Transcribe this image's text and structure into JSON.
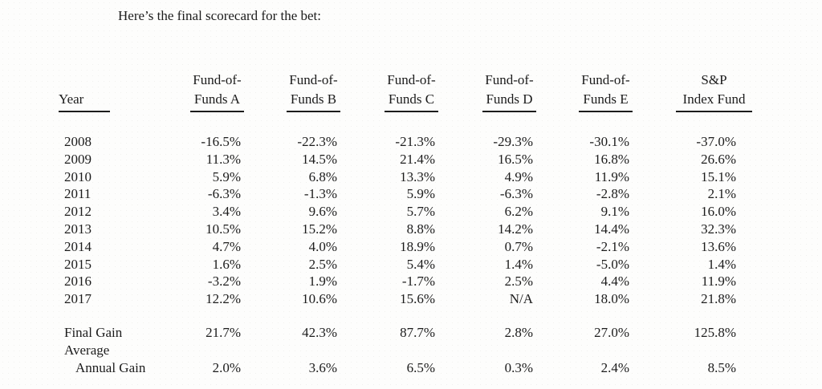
{
  "title": "Here’s the final scorecard for the bet:",
  "table": {
    "columns": [
      {
        "line1": "",
        "line2": "Year"
      },
      {
        "line1": "Fund-of-",
        "line2": "Funds A"
      },
      {
        "line1": "Fund-of-",
        "line2": "Funds B"
      },
      {
        "line1": "Fund-of-",
        "line2": "Funds C"
      },
      {
        "line1": "Fund-of-",
        "line2": "Funds D"
      },
      {
        "line1": "Fund-of-",
        "line2": "Funds E"
      },
      {
        "line1": "S&P",
        "line2": "Index Fund"
      }
    ],
    "rows": [
      {
        "label": "2008",
        "values": [
          "-16.5%",
          "-22.3%",
          "-21.3%",
          "-29.3%",
          "-30.1%",
          "-37.0%"
        ]
      },
      {
        "label": "2009",
        "values": [
          "11.3%",
          "14.5%",
          "21.4%",
          "16.5%",
          "16.8%",
          "26.6%"
        ]
      },
      {
        "label": "2010",
        "values": [
          "5.9%",
          "6.8%",
          "13.3%",
          "4.9%",
          "11.9%",
          "15.1%"
        ]
      },
      {
        "label": "2011",
        "values": [
          "-6.3%",
          "-1.3%",
          "5.9%",
          "-6.3%",
          "-2.8%",
          "2.1%"
        ]
      },
      {
        "label": "2012",
        "values": [
          "3.4%",
          "9.6%",
          "5.7%",
          "6.2%",
          "9.1%",
          "16.0%"
        ]
      },
      {
        "label": "2013",
        "values": [
          "10.5%",
          "15.2%",
          "8.8%",
          "14.2%",
          "14.4%",
          "32.3%"
        ]
      },
      {
        "label": "2014",
        "values": [
          "4.7%",
          "4.0%",
          "18.9%",
          "0.7%",
          "-2.1%",
          "13.6%"
        ]
      },
      {
        "label": "2015",
        "values": [
          "1.6%",
          "2.5%",
          "5.4%",
          "1.4%",
          "-5.0%",
          "1.4%"
        ]
      },
      {
        "label": "2016",
        "values": [
          "-3.2%",
          "1.9%",
          "-1.7%",
          "2.5%",
          "4.4%",
          "11.9%"
        ]
      },
      {
        "label": "2017",
        "values": [
          "12.2%",
          "10.6%",
          "15.6%",
          "N/A",
          "18.0%",
          "21.8%"
        ]
      }
    ],
    "summary": [
      {
        "label": "Final Gain",
        "indent": false,
        "values": [
          "21.7%",
          "42.3%",
          "87.7%",
          "2.8%",
          "27.0%",
          "125.8%"
        ]
      },
      {
        "label": "Average",
        "indent": false,
        "values": [
          "",
          "",
          "",
          "",
          "",
          ""
        ]
      },
      {
        "label": "Annual Gain",
        "indent": true,
        "values": [
          "2.0%",
          "3.6%",
          "6.5%",
          "0.3%",
          "2.4%",
          "8.5%"
        ]
      }
    ]
  },
  "colors": {
    "text": "#1c1c1c",
    "background": "#fdfdfc"
  }
}
